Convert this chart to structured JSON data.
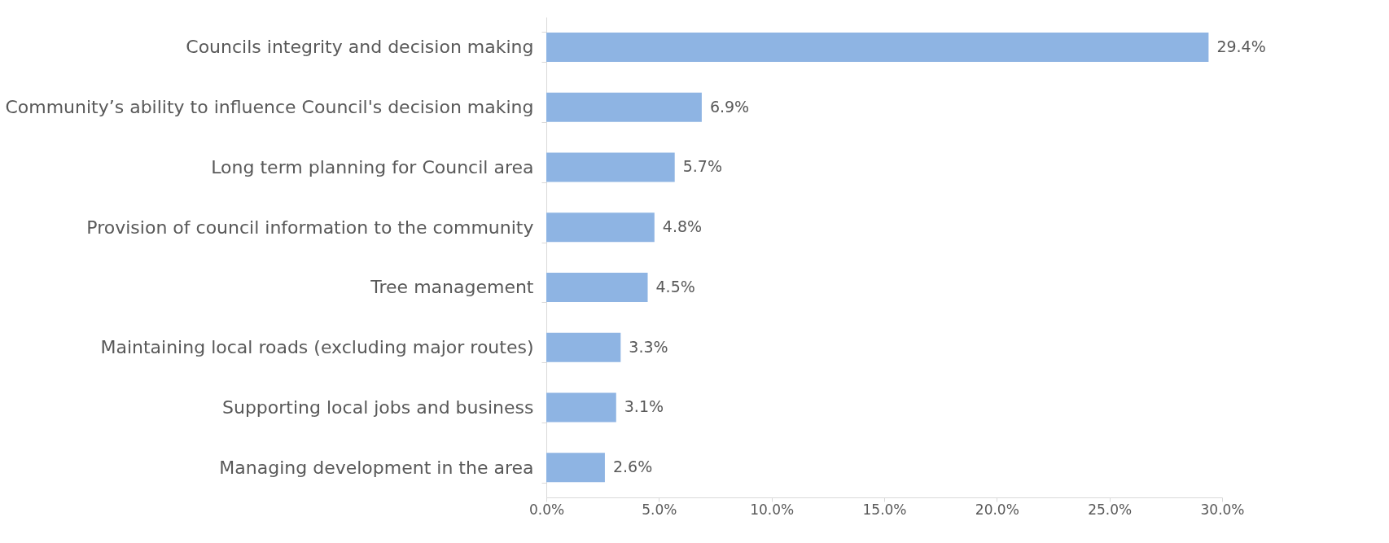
{
  "chart_data": {
    "type": "bar",
    "orientation": "horizontal",
    "categories": [
      "Councils integrity and decision making",
      "Community’s ability to influence Council's decision making",
      "Long term planning for Council area",
      "Provision of council information to the community",
      "Tree management",
      "Maintaining local roads (excluding major routes)",
      "Supporting local jobs and business",
      "Managing development in the area"
    ],
    "values": [
      29.4,
      6.9,
      5.7,
      4.8,
      4.5,
      3.3,
      3.1,
      2.6
    ],
    "value_labels": [
      "29.4%",
      "6.9%",
      "5.7%",
      "4.8%",
      "4.5%",
      "3.3%",
      "3.1%",
      "2.6%"
    ],
    "color": "#8eb4e3",
    "xlim": [
      0,
      30
    ],
    "xticks": [
      {
        "value": 0,
        "label": "0.0%"
      },
      {
        "value": 5,
        "label": "5.0%"
      },
      {
        "value": 10,
        "label": "10.0%"
      },
      {
        "value": 15,
        "label": "15.0%"
      },
      {
        "value": 20,
        "label": "20.0%"
      },
      {
        "value": 25,
        "label": "25.0%"
      },
      {
        "value": 30,
        "label": "30.0%"
      }
    ],
    "grid": false
  }
}
